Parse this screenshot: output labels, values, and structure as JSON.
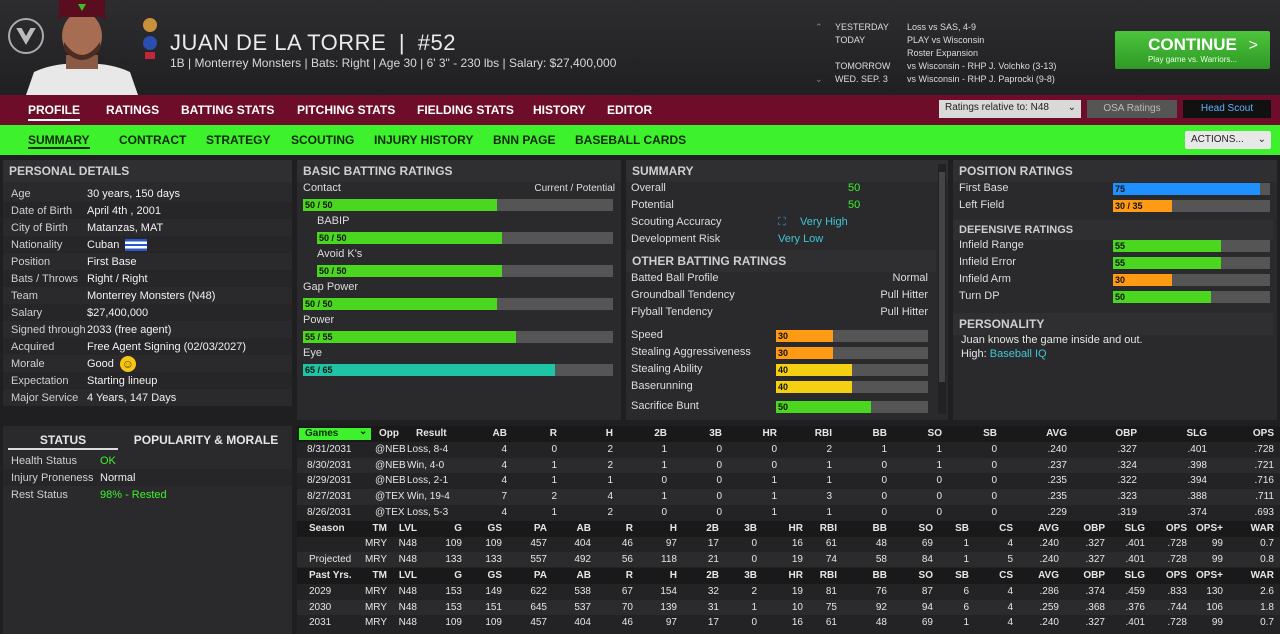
{
  "header": {
    "name": "JUAN DE LA TORRE",
    "number_sep": "|",
    "number": "#52",
    "subline": "1B | Monterrey Monsters  |  Bats: Right  |  Age 30  |  6' 3\" - 230 lbs  |  Salary: $27,400,000"
  },
  "schedule": [
    {
      "arrow": "⌃",
      "day": "YESTERDAY",
      "game": "Loss vs SAS, 4-9"
    },
    {
      "arrow": "",
      "day": "TODAY",
      "game": "PLAY vs Wisconsin"
    },
    {
      "arrow": "",
      "day": "",
      "game": "Roster Expansion"
    },
    {
      "arrow": "",
      "day": "TOMORROW",
      "game": "vs Wisconsin - RHP J. Volchko (3-13)"
    },
    {
      "arrow": "⌄",
      "day": "WED. SEP. 3",
      "game": "vs Wisconsin - RHP J. Paprocki (9-8)"
    }
  ],
  "continue": {
    "label": "CONTINUE",
    "sub": "Play game vs. Warriors...",
    "chev": ">"
  },
  "main_tabs": [
    "PROFILE",
    "RATINGS",
    "BATTING STATS",
    "PITCHING STATS",
    "FIELDING STATS",
    "HISTORY",
    "EDITOR"
  ],
  "ratings_relative": "Ratings relative to: N48",
  "osa": "OSA Ratings",
  "head_scout": "Head Scout",
  "sub_tabs": [
    "SUMMARY",
    "CONTRACT",
    "STRATEGY",
    "SCOUTING",
    "INJURY HISTORY",
    "BNN PAGE",
    "BASEBALL CARDS"
  ],
  "actions": "ACTIONS...",
  "personal": {
    "title": "PERSONAL DETAILS",
    "rows": [
      {
        "k": "Age",
        "v": "30 years, 150 days"
      },
      {
        "k": "Date of Birth",
        "v": "April 4th , 2001"
      },
      {
        "k": "City of Birth",
        "v": "Matanzas, MAT"
      },
      {
        "k": "Nationality",
        "v": "Cuban"
      },
      {
        "k": "Position",
        "v": "First Base"
      },
      {
        "k": "Bats / Throws",
        "v": "Right / Right"
      },
      {
        "k": "Team",
        "v": "Monterrey Monsters (N48)"
      },
      {
        "k": "Salary",
        "v": "$27,400,000"
      },
      {
        "k": "Signed through",
        "v": "2033 (free agent)"
      },
      {
        "k": "Acquired",
        "v": "Free Agent Signing (02/03/2027)"
      },
      {
        "k": "Morale",
        "v": "Good"
      },
      {
        "k": "Expectation",
        "v": "Starting lineup"
      },
      {
        "k": "Major Service",
        "v": "4 Years, 147 Days"
      }
    ]
  },
  "batting": {
    "title": "BASIC BATTING RATINGS",
    "cur_pot": "Current / Potential",
    "rows": [
      {
        "label": "Contact",
        "value": "50 / 50",
        "level": 50,
        "color": "#4bd61f"
      },
      {
        "label": "BABIP",
        "value": "50 / 50",
        "level": 50,
        "color": "#4bd61f"
      },
      {
        "label": "Avoid K's",
        "value": "50 / 50",
        "level": 50,
        "color": "#4bd61f"
      },
      {
        "label": "Gap Power",
        "value": "50 / 50",
        "level": 50,
        "color": "#4bd61f"
      },
      {
        "label": "Power",
        "value": "55 / 55",
        "level": 55,
        "color": "#4bd61f"
      },
      {
        "label": "Eye",
        "value": "65 / 65",
        "level": 65,
        "color": "#1fc4a4"
      }
    ]
  },
  "summary": {
    "title": "SUMMARY",
    "rows": [
      {
        "k": "Overall",
        "v": "50"
      },
      {
        "k": "Potential",
        "v": "50"
      },
      {
        "k": "Scouting Accuracy",
        "v": "Very High"
      },
      {
        "k": "Development Risk",
        "v": "Very Low"
      }
    ],
    "other_title": "OTHER BATTING RATINGS",
    "other": [
      {
        "k": "Batted Ball Profile",
        "v": "Normal"
      },
      {
        "k": "Groundball Tendency",
        "v": "Pull Hitter"
      },
      {
        "k": "Flyball Tendency",
        "v": "Pull Hitter"
      }
    ],
    "speed": [
      {
        "k": "Speed",
        "v": "30",
        "level": 30,
        "color": "#ff9a14"
      },
      {
        "k": "Stealing Aggressiveness",
        "v": "30",
        "level": 30,
        "color": "#ff9a14"
      },
      {
        "k": "Stealing Ability",
        "v": "40",
        "level": 40,
        "color": "#f5d012"
      },
      {
        "k": "Baserunning",
        "v": "40",
        "level": 40,
        "color": "#f5d012"
      },
      {
        "k": "Sacrifice Bunt",
        "v": "50",
        "level": 50,
        "color": "#4bd61f"
      }
    ]
  },
  "position": {
    "title": "POSITION RATINGS",
    "rows": [
      {
        "k": "First Base",
        "v": "75",
        "level": 75,
        "color": "#1e90ff"
      },
      {
        "k": "Left Field",
        "v": "30 / 35",
        "level": 30,
        "color": "#ff9a14"
      }
    ],
    "def_title": "DEFENSIVE RATINGS",
    "def": [
      {
        "k": "Infield Range",
        "v": "55",
        "level": 55,
        "color": "#4bd61f"
      },
      {
        "k": "Infield Error",
        "v": "55",
        "level": 55,
        "color": "#4bd61f"
      },
      {
        "k": "Infield Arm",
        "v": "30",
        "level": 30,
        "color": "#ff9a14"
      },
      {
        "k": "Turn DP",
        "v": "50",
        "level": 50,
        "color": "#4bd61f"
      }
    ],
    "pers_title": "PERSONALITY",
    "pers_text": "Juan knows the game inside and out.",
    "pers_high": "High:",
    "pers_high_v": "Baseball IQ"
  },
  "status": {
    "tab1": "STATUS",
    "tab2": "POPULARITY & MORALE",
    "rows": [
      {
        "k": "Health Status",
        "v": "OK",
        "color": "#3df22d"
      },
      {
        "k": "Injury Proneness",
        "v": "Normal",
        "color": "#eee"
      },
      {
        "k": "Rest Status",
        "v": "98% - Rested",
        "color": "#3df22d"
      }
    ]
  },
  "games": {
    "dropdown": "Games",
    "headers": [
      "Opp",
      "Result",
      "AB",
      "R",
      "H",
      "2B",
      "3B",
      "HR",
      "RBI",
      "BB",
      "SO",
      "SB",
      "AVG",
      "OBP",
      "SLG",
      "OPS"
    ],
    "rows": [
      [
        "8/31/2031",
        "@NEB",
        "Loss, 8-4",
        "4",
        "0",
        "2",
        "1",
        "0",
        "0",
        "2",
        "1",
        "1",
        "0",
        ".240",
        ".327",
        ".401",
        ".728"
      ],
      [
        "8/30/2031",
        "@NEB",
        "Win, 4-0",
        "4",
        "1",
        "2",
        "1",
        "0",
        "0",
        "1",
        "0",
        "1",
        "0",
        ".237",
        ".324",
        ".398",
        ".721"
      ],
      [
        "8/29/2031",
        "@NEB",
        "Loss, 2-1",
        "4",
        "1",
        "1",
        "0",
        "0",
        "1",
        "1",
        "0",
        "0",
        "0",
        ".235",
        ".322",
        ".394",
        ".716"
      ],
      [
        "8/27/2031",
        "@TEX",
        "Win, 19-4",
        "7",
        "2",
        "4",
        "1",
        "0",
        "1",
        "3",
        "0",
        "0",
        "0",
        ".235",
        ".323",
        ".388",
        ".711"
      ],
      [
        "8/26/2031",
        "@TEX",
        "Loss, 5-3",
        "4",
        "1",
        "2",
        "0",
        "0",
        "1",
        "1",
        "0",
        "0",
        "0",
        ".229",
        ".319",
        ".374",
        ".693"
      ]
    ]
  },
  "season": {
    "headers": [
      "Season",
      "TM",
      "LVL",
      "G",
      "GS",
      "PA",
      "AB",
      "R",
      "H",
      "2B",
      "3B",
      "HR",
      "RBI",
      "BB",
      "SO",
      "SB",
      "CS",
      "AVG",
      "OBP",
      "SLG",
      "OPS",
      "OPS+",
      "WAR"
    ],
    "rows": [
      [
        "",
        "MRY",
        "N48",
        "109",
        "109",
        "457",
        "404",
        "46",
        "97",
        "17",
        "0",
        "16",
        "61",
        "48",
        "69",
        "1",
        "4",
        ".240",
        ".327",
        ".401",
        ".728",
        "99",
        "0.7"
      ],
      [
        "Projected",
        "MRY",
        "N48",
        "133",
        "133",
        "557",
        "492",
        "56",
        "118",
        "21",
        "0",
        "19",
        "74",
        "58",
        "84",
        "1",
        "5",
        ".240",
        ".327",
        ".401",
        ".728",
        "99",
        "0.8"
      ]
    ]
  },
  "past": {
    "headers": [
      "Past Yrs.",
      "TM",
      "LVL",
      "G",
      "GS",
      "PA",
      "AB",
      "R",
      "H",
      "2B",
      "3B",
      "HR",
      "RBI",
      "BB",
      "SO",
      "SB",
      "CS",
      "AVG",
      "OBP",
      "SLG",
      "OPS",
      "OPS+",
      "WAR"
    ],
    "rows": [
      [
        "2029",
        "MRY",
        "N48",
        "153",
        "149",
        "622",
        "538",
        "67",
        "154",
        "32",
        "2",
        "19",
        "81",
        "76",
        "87",
        "6",
        "4",
        ".286",
        ".374",
        ".459",
        ".833",
        "130",
        "2.6"
      ],
      [
        "2030",
        "MRY",
        "N48",
        "153",
        "151",
        "645",
        "537",
        "70",
        "139",
        "31",
        "1",
        "10",
        "75",
        "92",
        "94",
        "6",
        "4",
        ".259",
        ".368",
        ".376",
        ".744",
        "106",
        "1.8"
      ],
      [
        "2031",
        "MRY",
        "N48",
        "109",
        "109",
        "457",
        "404",
        "46",
        "97",
        "17",
        "0",
        "16",
        "61",
        "48",
        "69",
        "1",
        "4",
        ".240",
        ".327",
        ".401",
        ".728",
        "99",
        "0.7"
      ]
    ]
  }
}
